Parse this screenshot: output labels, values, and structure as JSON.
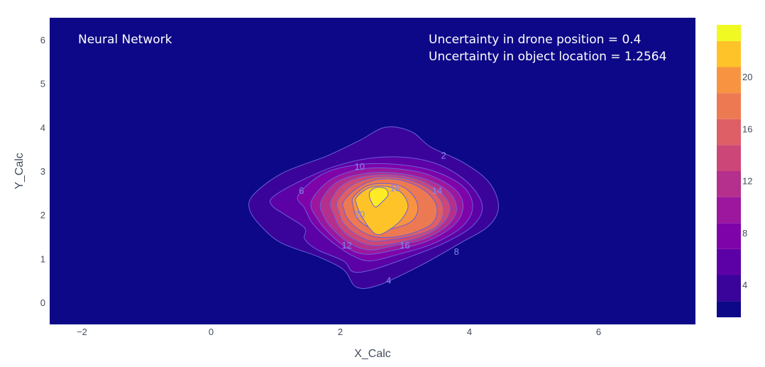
{
  "chart_data": {
    "type": "contour",
    "title": "",
    "xlabel": "X_Calc",
    "ylabel": "Y_Calc",
    "xlim": [
      -2.5,
      7.5
    ],
    "ylim": [
      -0.5,
      6.5
    ],
    "x_ticks": [
      "−2",
      "0",
      "2",
      "4",
      "6"
    ],
    "x_tick_values": [
      -2,
      0,
      2,
      4,
      6
    ],
    "y_ticks": [
      "0",
      "1",
      "2",
      "3",
      "4",
      "5",
      "6"
    ],
    "y_tick_values": [
      0,
      1,
      2,
      3,
      4,
      5,
      6
    ],
    "grid": false,
    "annotations": {
      "method": "Neural Network",
      "drone_uncertainty": "Uncertainty in drone position  = 0.4",
      "object_uncertainty": "Uncertainty in object location = 1.2564"
    },
    "peak": {
      "x": 2.55,
      "y": 2.35,
      "value": 23
    },
    "contour_levels": [
      {
        "level": 2,
        "fill": "#3a049a",
        "pts": [
          [
            0.65,
            2.45
          ],
          [
            1.1,
            2.95
          ],
          [
            1.8,
            3.35
          ],
          [
            2.3,
            3.7
          ],
          [
            2.7,
            4.0
          ],
          [
            3.1,
            3.9
          ],
          [
            3.4,
            3.55
          ],
          [
            3.9,
            3.2
          ],
          [
            4.3,
            2.75
          ],
          [
            4.45,
            2.2
          ],
          [
            4.3,
            1.75
          ],
          [
            3.85,
            1.35
          ],
          [
            3.25,
            0.85
          ],
          [
            2.6,
            0.4
          ],
          [
            2.25,
            0.35
          ],
          [
            2.05,
            0.75
          ],
          [
            1.65,
            1.05
          ],
          [
            1.1,
            1.35
          ],
          [
            0.8,
            1.7
          ],
          [
            0.6,
            2.1
          ]
        ]
      },
      {
        "level": 4,
        "fill": "#5c01a6",
        "pts": [
          [
            0.95,
            2.4
          ],
          [
            1.35,
            2.75
          ],
          [
            1.9,
            3.1
          ],
          [
            2.5,
            3.3
          ],
          [
            3.1,
            3.3
          ],
          [
            3.6,
            3.1
          ],
          [
            4.0,
            2.7
          ],
          [
            4.2,
            2.2
          ],
          [
            4.05,
            1.75
          ],
          [
            3.6,
            1.35
          ],
          [
            3.0,
            1.0
          ],
          [
            2.5,
            0.75
          ],
          [
            2.2,
            0.7
          ],
          [
            2.05,
            0.95
          ],
          [
            1.65,
            1.2
          ],
          [
            1.45,
            1.45
          ],
          [
            1.45,
            1.7
          ],
          [
            1.15,
            2.0
          ],
          [
            0.95,
            2.2
          ]
        ]
      },
      {
        "level": 6,
        "fill": "#7e03a8",
        "pts": [
          [
            1.35,
            2.45
          ],
          [
            1.75,
            2.95
          ],
          [
            2.3,
            3.15
          ],
          [
            2.9,
            3.15
          ],
          [
            3.45,
            3.0
          ],
          [
            3.9,
            2.65
          ],
          [
            4.05,
            2.2
          ],
          [
            3.9,
            1.75
          ],
          [
            3.45,
            1.35
          ],
          [
            2.9,
            1.1
          ],
          [
            2.45,
            0.95
          ],
          [
            2.15,
            1.1
          ],
          [
            1.9,
            1.35
          ],
          [
            1.7,
            1.6
          ],
          [
            1.55,
            1.85
          ],
          [
            1.45,
            2.15
          ]
        ]
      },
      {
        "level": 8,
        "fill": "#9c179e",
        "pts": [
          [
            1.55,
            2.3
          ],
          [
            1.85,
            2.8
          ],
          [
            2.35,
            3.05
          ],
          [
            2.9,
            3.05
          ],
          [
            3.4,
            2.9
          ],
          [
            3.8,
            2.55
          ],
          [
            3.9,
            2.15
          ],
          [
            3.75,
            1.75
          ],
          [
            3.35,
            1.4
          ],
          [
            2.85,
            1.2
          ],
          [
            2.4,
            1.1
          ],
          [
            2.1,
            1.25
          ],
          [
            1.85,
            1.55
          ],
          [
            1.65,
            1.9
          ]
        ]
      },
      {
        "level": 10,
        "fill": "#b52f8c",
        "pts": [
          [
            1.7,
            2.3
          ],
          [
            1.95,
            2.75
          ],
          [
            2.4,
            2.95
          ],
          [
            2.9,
            2.95
          ],
          [
            3.35,
            2.8
          ],
          [
            3.7,
            2.5
          ],
          [
            3.8,
            2.1
          ],
          [
            3.65,
            1.75
          ],
          [
            3.3,
            1.45
          ],
          [
            2.85,
            1.3
          ],
          [
            2.45,
            1.2
          ],
          [
            2.15,
            1.35
          ],
          [
            1.9,
            1.65
          ],
          [
            1.75,
            1.95
          ]
        ]
      },
      {
        "level": 12,
        "fill": "#cc4778",
        "pts": [
          [
            1.85,
            2.3
          ],
          [
            2.05,
            2.7
          ],
          [
            2.45,
            2.9
          ],
          [
            2.9,
            2.9
          ],
          [
            3.3,
            2.75
          ],
          [
            3.6,
            2.45
          ],
          [
            3.7,
            2.1
          ],
          [
            3.55,
            1.75
          ],
          [
            3.25,
            1.5
          ],
          [
            2.85,
            1.35
          ],
          [
            2.5,
            1.3
          ],
          [
            2.2,
            1.45
          ],
          [
            2.0,
            1.7
          ],
          [
            1.9,
            2.0
          ]
        ]
      },
      {
        "level": 14,
        "fill": "#de5f65",
        "pts": [
          [
            1.95,
            2.3
          ],
          [
            2.15,
            2.65
          ],
          [
            2.5,
            2.85
          ],
          [
            2.9,
            2.85
          ],
          [
            3.25,
            2.7
          ],
          [
            3.5,
            2.45
          ],
          [
            3.6,
            2.1
          ],
          [
            3.5,
            1.75
          ],
          [
            3.2,
            1.55
          ],
          [
            2.85,
            1.45
          ],
          [
            2.5,
            1.4
          ],
          [
            2.25,
            1.55
          ],
          [
            2.05,
            1.8
          ],
          [
            1.98,
            2.05
          ]
        ]
      },
      {
        "level": 16,
        "fill": "#ed7953",
        "pts": [
          [
            2.05,
            2.3
          ],
          [
            2.25,
            2.6
          ],
          [
            2.55,
            2.8
          ],
          [
            2.9,
            2.8
          ],
          [
            3.2,
            2.65
          ],
          [
            3.42,
            2.4
          ],
          [
            3.5,
            2.1
          ],
          [
            3.42,
            1.8
          ],
          [
            3.15,
            1.6
          ],
          [
            2.85,
            1.5
          ],
          [
            2.55,
            1.5
          ],
          [
            2.3,
            1.65
          ],
          [
            2.12,
            1.9
          ],
          [
            2.06,
            2.1
          ]
        ]
      },
      {
        "level": 18,
        "fill": "#f89441",
        "pts": [
          [
            2.2,
            2.4
          ],
          [
            2.4,
            2.65
          ],
          [
            2.65,
            2.72
          ],
          [
            2.95,
            2.65
          ],
          [
            3.15,
            2.4
          ],
          [
            3.2,
            2.1
          ],
          [
            3.1,
            1.85
          ],
          [
            2.85,
            1.7
          ],
          [
            2.6,
            1.65
          ],
          [
            2.4,
            1.75
          ],
          [
            2.25,
            1.95
          ],
          [
            2.2,
            2.2
          ]
        ]
      },
      {
        "level": 20,
        "fill": "#fdc328",
        "pts": [
          [
            2.25,
            2.4
          ],
          [
            2.45,
            2.62
          ],
          [
            2.72,
            2.65
          ],
          [
            2.95,
            2.5
          ],
          [
            3.05,
            2.2
          ],
          [
            2.95,
            1.9
          ],
          [
            2.75,
            1.65
          ],
          [
            2.58,
            1.55
          ],
          [
            2.45,
            1.7
          ],
          [
            2.32,
            2.0
          ],
          [
            2.25,
            2.25
          ]
        ]
      },
      {
        "level": 22,
        "fill": "#fdeb25",
        "pts": [
          [
            2.45,
            2.5
          ],
          [
            2.55,
            2.62
          ],
          [
            2.7,
            2.6
          ],
          [
            2.74,
            2.45
          ],
          [
            2.65,
            2.3
          ],
          [
            2.55,
            2.18
          ],
          [
            2.48,
            2.3
          ]
        ]
      }
    ],
    "contour_labels": [
      {
        "text": "2",
        "x": 3.6,
        "y": 3.35
      },
      {
        "text": "10",
        "x": 2.3,
        "y": 3.1
      },
      {
        "text": "6",
        "x": 1.4,
        "y": 2.55
      },
      {
        "text": "18",
        "x": 2.85,
        "y": 2.6
      },
      {
        "text": "14",
        "x": 3.5,
        "y": 2.55
      },
      {
        "text": "20",
        "x": 2.3,
        "y": 2.0
      },
      {
        "text": "12",
        "x": 2.1,
        "y": 1.3
      },
      {
        "text": "16",
        "x": 3.0,
        "y": 1.3
      },
      {
        "text": "8",
        "x": 3.8,
        "y": 1.15
      },
      {
        "text": "4",
        "x": 2.75,
        "y": 0.5
      }
    ],
    "colorbar": {
      "range": [
        1.5,
        24
      ],
      "ticks": [
        "4",
        "8",
        "12",
        "16",
        "20"
      ],
      "tick_values": [
        4,
        8,
        12,
        16,
        20
      ],
      "bands": [
        {
          "from": 1.5,
          "to": 2.75,
          "color": "#0d0887"
        },
        {
          "from": 2.75,
          "to": 4.75,
          "color": "#3a049a"
        },
        {
          "from": 4.75,
          "to": 6.75,
          "color": "#5c01a6"
        },
        {
          "from": 6.75,
          "to": 8.75,
          "color": "#7e03a8"
        },
        {
          "from": 8.75,
          "to": 10.75,
          "color": "#9c179e"
        },
        {
          "from": 10.75,
          "to": 12.75,
          "color": "#b52f8c"
        },
        {
          "from": 12.75,
          "to": 14.75,
          "color": "#cc4778"
        },
        {
          "from": 14.75,
          "to": 16.75,
          "color": "#de5f65"
        },
        {
          "from": 16.75,
          "to": 18.75,
          "color": "#ed7953"
        },
        {
          "from": 18.75,
          "to": 20.75,
          "color": "#f89441"
        },
        {
          "from": 20.75,
          "to": 22.75,
          "color": "#fdc328"
        },
        {
          "from": 22.75,
          "to": 24,
          "color": "#f0f921"
        }
      ]
    },
    "colors": {
      "background": "#0d0887",
      "contour_line": "#6a5fd8",
      "label": "#8a87ee"
    }
  }
}
